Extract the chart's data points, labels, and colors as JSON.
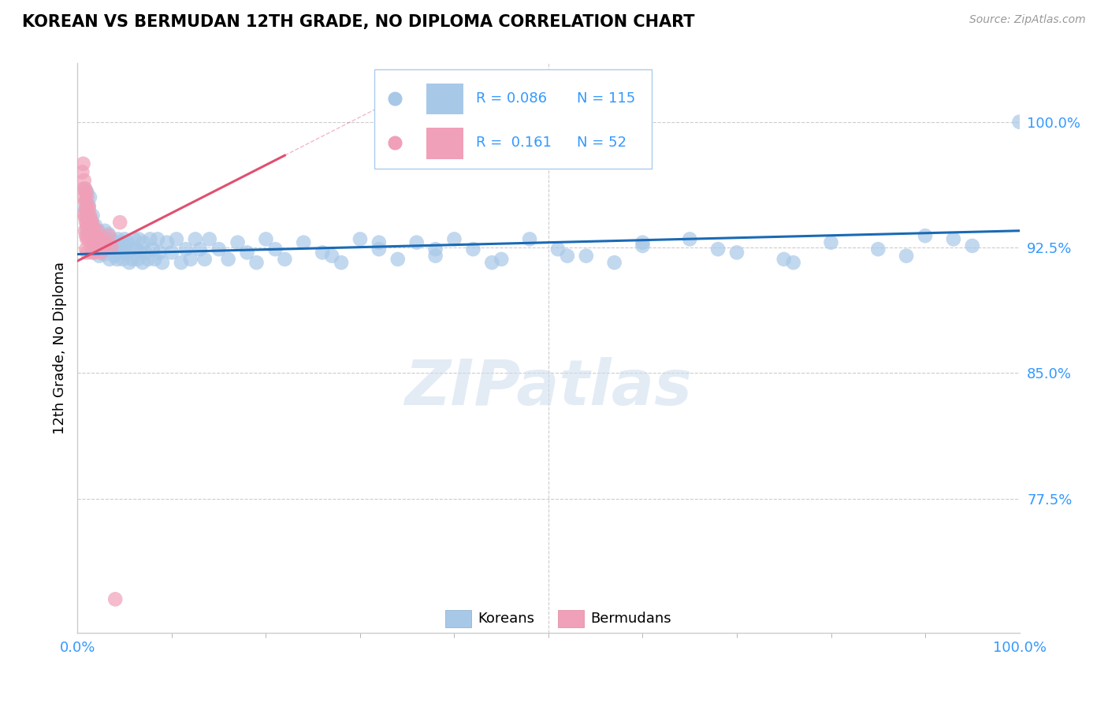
{
  "title": "KOREAN VS BERMUDAN 12TH GRADE, NO DIPLOMA CORRELATION CHART",
  "source_text": "Source: ZipAtlas.com",
  "ylabel": "12th Grade, No Diploma",
  "xlim": [
    0.0,
    1.0
  ],
  "ylim": [
    0.695,
    1.035
  ],
  "yticks": [
    0.775,
    0.85,
    0.925,
    1.0
  ],
  "ytick_labels": [
    "77.5%",
    "85.0%",
    "92.5%",
    "100.0%"
  ],
  "xtick_labels": [
    "0.0%",
    "100.0%"
  ],
  "xticks": [
    0.0,
    1.0
  ],
  "korean_color": "#a8c8e8",
  "bermudan_color": "#f0a0b8",
  "korean_line_color": "#1a6ab5",
  "bermudan_line_color": "#e05070",
  "legend_korean_label": "Koreans",
  "legend_bermudan_label": "Bermudans",
  "korean_R": 0.086,
  "korean_N": 115,
  "bermudan_R": 0.161,
  "bermudan_N": 52,
  "watermark": "ZIPatlas",
  "background_color": "#ffffff",
  "grid_color": "#cccccc",
  "annotation_color": "#3399ff",
  "korean_trend_x0": 0.0,
  "korean_trend_y0": 0.921,
  "korean_trend_x1": 1.0,
  "korean_trend_y1": 0.935,
  "bermudan_trend_x0": 0.0,
  "bermudan_trend_y0": 0.917,
  "bermudan_trend_x1": 0.22,
  "bermudan_trend_y1": 0.98,
  "korean_x": [
    0.008,
    0.008,
    0.009,
    0.01,
    0.01,
    0.01,
    0.011,
    0.012,
    0.013,
    0.014,
    0.015,
    0.015,
    0.016,
    0.017,
    0.018,
    0.019,
    0.02,
    0.021,
    0.022,
    0.023,
    0.024,
    0.025,
    0.027,
    0.028,
    0.029,
    0.03,
    0.031,
    0.032,
    0.033,
    0.034,
    0.035,
    0.036,
    0.038,
    0.039,
    0.04,
    0.041,
    0.042,
    0.043,
    0.044,
    0.046,
    0.047,
    0.048,
    0.05,
    0.052,
    0.053,
    0.055,
    0.057,
    0.058,
    0.06,
    0.062,
    0.064,
    0.065,
    0.067,
    0.069,
    0.07,
    0.072,
    0.075,
    0.077,
    0.08,
    0.082,
    0.085,
    0.087,
    0.09,
    0.095,
    0.1,
    0.105,
    0.11,
    0.115,
    0.12,
    0.125,
    0.13,
    0.135,
    0.14,
    0.15,
    0.16,
    0.17,
    0.18,
    0.19,
    0.2,
    0.21,
    0.22,
    0.24,
    0.26,
    0.28,
    0.3,
    0.32,
    0.34,
    0.36,
    0.38,
    0.4,
    0.42,
    0.45,
    0.48,
    0.51,
    0.54,
    0.57,
    0.6,
    0.65,
    0.7,
    0.75,
    0.8,
    0.85,
    0.9,
    0.95,
    0.93,
    0.88,
    0.76,
    0.68,
    0.6,
    0.52,
    0.44,
    0.38,
    0.32,
    0.27,
    1.0
  ],
  "korean_y": [
    0.96,
    0.948,
    0.953,
    0.958,
    0.942,
    0.936,
    0.944,
    0.95,
    0.955,
    0.938,
    0.932,
    0.94,
    0.944,
    0.928,
    0.933,
    0.938,
    0.925,
    0.93,
    0.935,
    0.92,
    0.928,
    0.932,
    0.926,
    0.921,
    0.935,
    0.93,
    0.924,
    0.928,
    0.933,
    0.918,
    0.924,
    0.93,
    0.926,
    0.92,
    0.928,
    0.924,
    0.918,
    0.93,
    0.922,
    0.928,
    0.924,
    0.918,
    0.93,
    0.922,
    0.928,
    0.916,
    0.924,
    0.918,
    0.93,
    0.924,
    0.918,
    0.93,
    0.922,
    0.916,
    0.928,
    0.922,
    0.918,
    0.93,
    0.924,
    0.918,
    0.93,
    0.922,
    0.916,
    0.928,
    0.922,
    0.93,
    0.916,
    0.924,
    0.918,
    0.93,
    0.924,
    0.918,
    0.93,
    0.924,
    0.918,
    0.928,
    0.922,
    0.916,
    0.93,
    0.924,
    0.918,
    0.928,
    0.922,
    0.916,
    0.93,
    0.924,
    0.918,
    0.928,
    0.92,
    0.93,
    0.924,
    0.918,
    0.93,
    0.924,
    0.92,
    0.916,
    0.926,
    0.93,
    0.922,
    0.918,
    0.928,
    0.924,
    0.932,
    0.926,
    0.93,
    0.92,
    0.916,
    0.924,
    0.928,
    0.92,
    0.916,
    0.924,
    0.928,
    0.92,
    1.0
  ],
  "bermudan_x": [
    0.005,
    0.006,
    0.006,
    0.007,
    0.007,
    0.007,
    0.008,
    0.008,
    0.008,
    0.008,
    0.009,
    0.009,
    0.009,
    0.009,
    0.009,
    0.01,
    0.01,
    0.01,
    0.01,
    0.01,
    0.011,
    0.011,
    0.011,
    0.012,
    0.012,
    0.012,
    0.013,
    0.013,
    0.014,
    0.014,
    0.015,
    0.015,
    0.015,
    0.016,
    0.016,
    0.017,
    0.017,
    0.018,
    0.018,
    0.019,
    0.02,
    0.021,
    0.022,
    0.024,
    0.025,
    0.026,
    0.028,
    0.03,
    0.033,
    0.036,
    0.04,
    0.045
  ],
  "bermudan_y": [
    0.97,
    0.96,
    0.975,
    0.965,
    0.955,
    0.945,
    0.96,
    0.952,
    0.943,
    0.935,
    0.958,
    0.948,
    0.94,
    0.932,
    0.924,
    0.955,
    0.945,
    0.938,
    0.93,
    0.922,
    0.95,
    0.94,
    0.932,
    0.948,
    0.938,
    0.93,
    0.944,
    0.935,
    0.942,
    0.932,
    0.94,
    0.93,
    0.922,
    0.938,
    0.928,
    0.935,
    0.925,
    0.932,
    0.922,
    0.93,
    0.928,
    0.935,
    0.93,
    0.928,
    0.922,
    0.93,
    0.925,
    0.928,
    0.932,
    0.925,
    0.715,
    0.94
  ]
}
